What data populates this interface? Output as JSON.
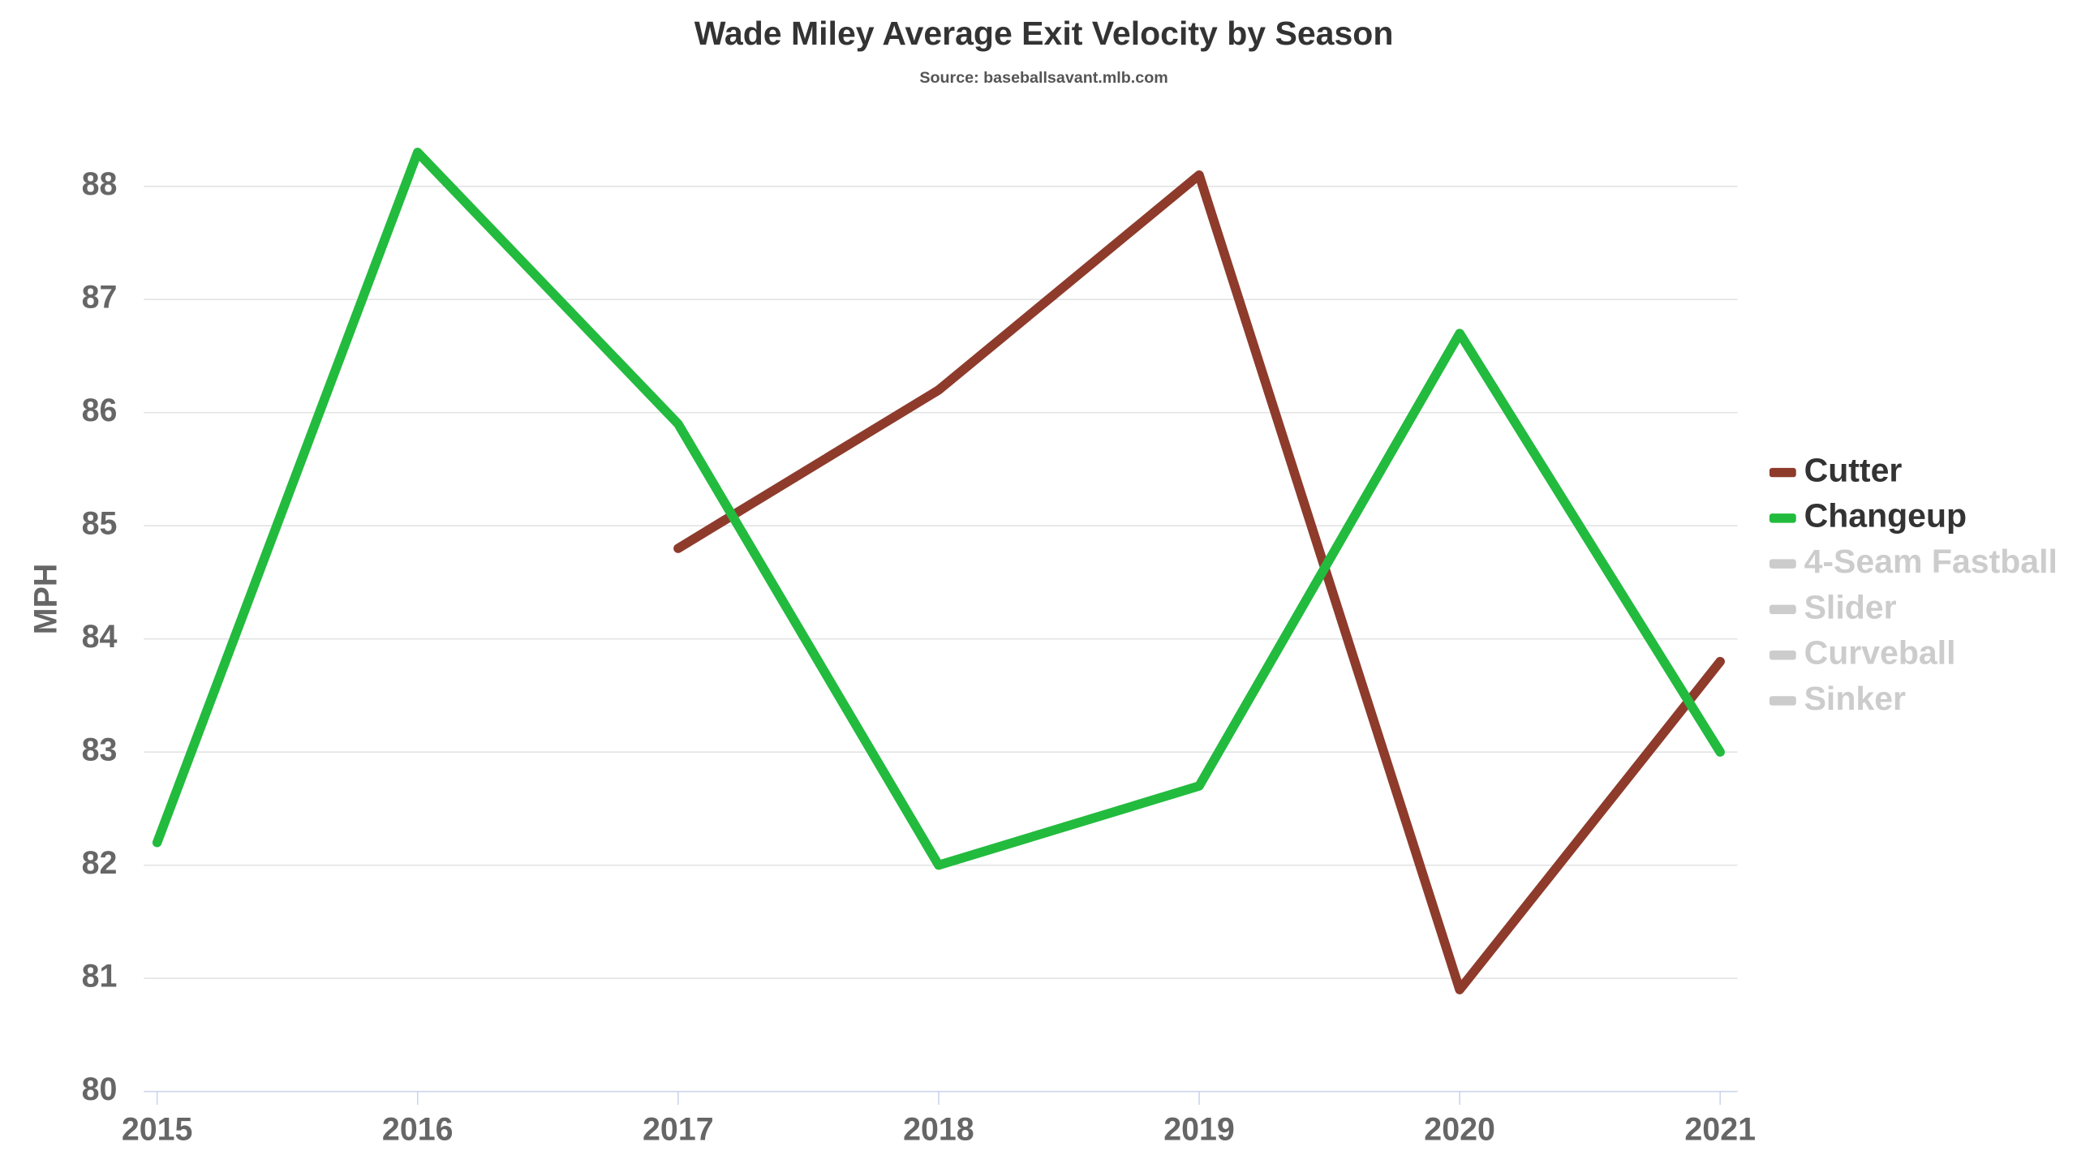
{
  "chart_data": {
    "type": "line",
    "title": "Wade Miley Average Exit Velocity by Season",
    "subtitle": "Source: baseballsavant.mlb.com",
    "y_label": "MPH",
    "x": [
      2015,
      2016,
      2017,
      2018,
      2019,
      2020,
      2021
    ],
    "xlim": [
      2015,
      2021
    ],
    "xticks": [
      2015,
      2016,
      2017,
      2018,
      2019,
      2020,
      2021
    ],
    "ylim": [
      80,
      88.5
    ],
    "yticks": [
      80,
      81,
      82,
      83,
      84,
      85,
      86,
      87,
      88
    ],
    "grid": true,
    "legend": "right",
    "series": [
      {
        "name": "Cutter",
        "color": "#8e3b2c",
        "visible": true,
        "values": [
          null,
          null,
          84.8,
          86.2,
          88.1,
          80.9,
          83.8
        ]
      },
      {
        "name": "Changeup",
        "color": "#22bb3e",
        "visible": true,
        "values": [
          82.2,
          88.3,
          85.9,
          82.0,
          82.7,
          86.7,
          83.0
        ]
      },
      {
        "name": "4-Seam Fastball",
        "color": "#cccccc",
        "visible": false,
        "values": [
          null,
          null,
          null,
          null,
          null,
          null,
          null
        ]
      },
      {
        "name": "Slider",
        "color": "#cccccc",
        "visible": false,
        "values": [
          null,
          null,
          null,
          null,
          null,
          null,
          null
        ]
      },
      {
        "name": "Curveball",
        "color": "#cccccc",
        "visible": false,
        "values": [
          null,
          null,
          null,
          null,
          null,
          null,
          null
        ]
      },
      {
        "name": "Sinker",
        "color": "#cccccc",
        "visible": false,
        "values": [
          null,
          null,
          null,
          null,
          null,
          null,
          null
        ]
      }
    ]
  }
}
